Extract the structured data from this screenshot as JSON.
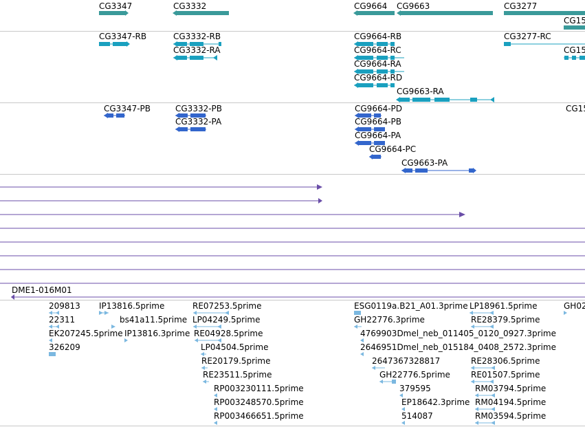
{
  "colors": {
    "gene": "#3a9a9a",
    "transcript": "#1aa0bf",
    "protein": "#3366cc",
    "alignment": "#6a4ea8",
    "est": "#7bb8e0",
    "separator": "#c8c8c8"
  },
  "genes": [
    {
      "label": "CG3347"
    },
    {
      "label": "CG3332"
    },
    {
      "label": "CG9664"
    },
    {
      "label": "CG9663"
    },
    {
      "label": "CG3277"
    },
    {
      "label": "CG15"
    }
  ],
  "transcripts": [
    {
      "label": "CG3347-RB"
    },
    {
      "label": "CG3332-RB"
    },
    {
      "label": "CG3332-RA"
    },
    {
      "label": "CG9664-RB"
    },
    {
      "label": "CG9664-RC"
    },
    {
      "label": "CG9664-RA"
    },
    {
      "label": "CG9664-RD"
    },
    {
      "label": "CG9663-RA"
    },
    {
      "label": "CG3277-RC"
    },
    {
      "label": "CG15"
    }
  ],
  "proteins": [
    {
      "label": "CG3347-PB"
    },
    {
      "label": "CG3332-PB"
    },
    {
      "label": "CG3332-PA"
    },
    {
      "label": "CG9664-PD"
    },
    {
      "label": "CG9664-PB"
    },
    {
      "label": "CG9664-PA"
    },
    {
      "label": "CG9664-PC"
    },
    {
      "label": "CG9663-PA"
    },
    {
      "label": "CG15"
    }
  ],
  "alignment": {
    "label": "DME1-016M01"
  },
  "ests": [
    {
      "label": "209813"
    },
    {
      "label": "22311"
    },
    {
      "label": "EK207245.5prime"
    },
    {
      "label": "326209"
    },
    {
      "label": "IP13816.5prime"
    },
    {
      "label": "bs41a11.5prime"
    },
    {
      "label": "IP13816.3prime"
    },
    {
      "label": "RE07253.5prime"
    },
    {
      "label": "LP04249.5prime"
    },
    {
      "label": "RE04928.5prime"
    },
    {
      "label": "LP04504.5prime"
    },
    {
      "label": "RE20179.5prime"
    },
    {
      "label": "RE23511.5prime"
    },
    {
      "label": "RP003230111.5prime"
    },
    {
      "label": "RP003248570.5prime"
    },
    {
      "label": "RP003466651.5prime"
    },
    {
      "label": "ESG0119a.B21_A01.3prime"
    },
    {
      "label": "GH22776.3prime"
    },
    {
      "label": "4769903Dmel_neb_011405_0120_0927.3prime"
    },
    {
      "label": "2646951Dmel_neb_015184_0408_2572.3prime"
    },
    {
      "label": "2647367328817"
    },
    {
      "label": "GH22776.5prime"
    },
    {
      "label": "379595"
    },
    {
      "label": "EP18642.3prime"
    },
    {
      "label": "514087"
    },
    {
      "label": "LP18961.5prime"
    },
    {
      "label": "RE28379.5prime"
    },
    {
      "label": "RE28306.5prime"
    },
    {
      "label": "RE01507.5prime"
    },
    {
      "label": "RM03794.5prime"
    },
    {
      "label": "RM04194.5prime"
    },
    {
      "label": "RM03594.5prime"
    },
    {
      "label": "GH02"
    }
  ]
}
